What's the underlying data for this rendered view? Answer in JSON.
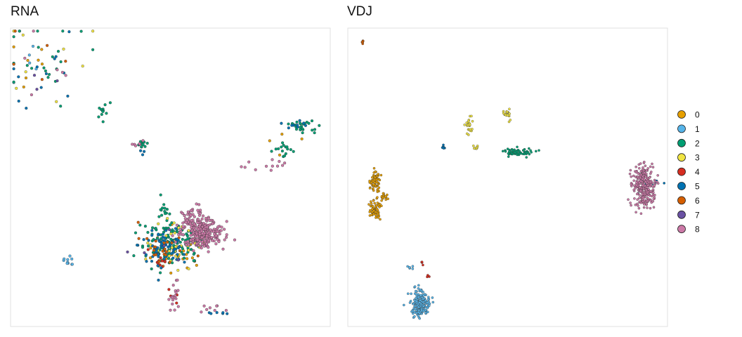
{
  "chart_data": [
    {
      "type": "scatter",
      "title": "RNA",
      "clusters": [
        {
          "name": "0",
          "groups": [
            {
              "cx": 0.07,
              "cy": 0.1,
              "n": 10,
              "sx": 0.07,
              "sy": 0.07
            },
            {
              "cx": 0.52,
              "cy": 0.75,
              "n": 25,
              "sx": 0.05,
              "sy": 0.035
            },
            {
              "cx": 0.89,
              "cy": 0.38,
              "n": 4,
              "sx": 0.04,
              "sy": 0.03
            }
          ]
        },
        {
          "name": "1",
          "groups": [
            {
              "cx": 0.18,
              "cy": 0.78,
              "n": 10,
              "sx": 0.008,
              "sy": 0.008
            },
            {
              "cx": 0.1,
              "cy": 0.12,
              "n": 5,
              "sx": 0.05,
              "sy": 0.05
            }
          ]
        },
        {
          "name": "2",
          "groups": [
            {
              "cx": 0.5,
              "cy": 0.72,
              "n": 120,
              "sx": 0.05,
              "sy": 0.04
            },
            {
              "cx": 0.1,
              "cy": 0.1,
              "n": 22,
              "sx": 0.07,
              "sy": 0.07
            },
            {
              "cx": 0.29,
              "cy": 0.28,
              "n": 12,
              "sx": 0.008,
              "sy": 0.015
            },
            {
              "cx": 0.41,
              "cy": 0.39,
              "n": 10,
              "sx": 0.01,
              "sy": 0.01
            },
            {
              "cx": 0.91,
              "cy": 0.33,
              "n": 25,
              "sx": 0.02,
              "sy": 0.012
            },
            {
              "cx": 0.86,
              "cy": 0.41,
              "n": 15,
              "sx": 0.015,
              "sy": 0.012
            },
            {
              "cx": 0.48,
              "cy": 0.61,
              "n": 14,
              "sx": 0.01,
              "sy": 0.015
            }
          ]
        },
        {
          "name": "3",
          "groups": [
            {
              "cx": 0.51,
              "cy": 0.73,
              "n": 40,
              "sx": 0.05,
              "sy": 0.035
            },
            {
              "cx": 0.1,
              "cy": 0.11,
              "n": 8,
              "sx": 0.07,
              "sy": 0.07
            }
          ]
        },
        {
          "name": "4",
          "groups": [
            {
              "cx": 0.47,
              "cy": 0.77,
              "n": 12,
              "sx": 0.02,
              "sy": 0.015
            },
            {
              "cx": 0.51,
              "cy": 0.9,
              "n": 4,
              "sx": 0.01,
              "sy": 0.02
            }
          ]
        },
        {
          "name": "5",
          "groups": [
            {
              "cx": 0.48,
              "cy": 0.73,
              "n": 70,
              "sx": 0.04,
              "sy": 0.035
            },
            {
              "cx": 0.08,
              "cy": 0.12,
              "n": 12,
              "sx": 0.07,
              "sy": 0.07
            },
            {
              "cx": 0.9,
              "cy": 0.33,
              "n": 10,
              "sx": 0.02,
              "sy": 0.012
            },
            {
              "cx": 0.64,
              "cy": 0.95,
              "n": 6,
              "sx": 0.025,
              "sy": 0.005
            },
            {
              "cx": 0.41,
              "cy": 0.4,
              "n": 4,
              "sx": 0.01,
              "sy": 0.01
            }
          ]
        },
        {
          "name": "6",
          "groups": [
            {
              "cx": 0.49,
              "cy": 0.74,
              "n": 22,
              "sx": 0.04,
              "sy": 0.035
            },
            {
              "cx": 0.09,
              "cy": 0.1,
              "n": 5,
              "sx": 0.07,
              "sy": 0.07
            }
          ]
        },
        {
          "name": "7",
          "groups": [
            {
              "cx": 0.48,
              "cy": 0.72,
              "n": 5,
              "sx": 0.04,
              "sy": 0.03
            },
            {
              "cx": 0.1,
              "cy": 0.2,
              "n": 3,
              "sx": 0.03,
              "sy": 0.03
            }
          ]
        },
        {
          "name": "8",
          "groups": [
            {
              "cx": 0.6,
              "cy": 0.69,
              "n": 260,
              "sx": 0.032,
              "sy": 0.025
            },
            {
              "cx": 0.56,
              "cy": 0.63,
              "n": 40,
              "sx": 0.025,
              "sy": 0.02
            },
            {
              "cx": 0.51,
              "cy": 0.9,
              "n": 18,
              "sx": 0.008,
              "sy": 0.03
            },
            {
              "cx": 0.63,
              "cy": 0.94,
              "n": 8,
              "sx": 0.02,
              "sy": 0.006
            },
            {
              "cx": 0.08,
              "cy": 0.1,
              "n": 6,
              "sx": 0.07,
              "sy": 0.07
            },
            {
              "cx": 0.4,
              "cy": 0.39,
              "n": 6,
              "sx": 0.01,
              "sy": 0.01
            },
            {
              "cx": 0.79,
              "cy": 0.46,
              "n": 12,
              "sx": 0.035,
              "sy": 0.012
            }
          ]
        }
      ]
    },
    {
      "type": "scatter",
      "title": "VDJ",
      "clusters": [
        {
          "name": "0",
          "groups": [
            {
              "cx": 0.086,
              "cy": 0.51,
              "n": 80,
              "sx": 0.008,
              "sy": 0.018
            },
            {
              "cx": 0.086,
              "cy": 0.61,
              "n": 60,
              "sx": 0.009,
              "sy": 0.015
            },
            {
              "cx": 0.11,
              "cy": 0.565,
              "n": 20,
              "sx": 0.006,
              "sy": 0.006
            }
          ]
        },
        {
          "name": "1",
          "groups": [
            {
              "cx": 0.228,
              "cy": 0.925,
              "n": 200,
              "sx": 0.014,
              "sy": 0.02
            },
            {
              "cx": 0.195,
              "cy": 0.805,
              "n": 6,
              "sx": 0.004,
              "sy": 0.005
            }
          ]
        },
        {
          "name": "2",
          "groups": [
            {
              "cx": 0.53,
              "cy": 0.415,
              "n": 60,
              "sx": 0.025,
              "sy": 0.007
            }
          ]
        },
        {
          "name": "3",
          "groups": [
            {
              "cx": 0.38,
              "cy": 0.325,
              "n": 25,
              "sx": 0.006,
              "sy": 0.012
            },
            {
              "cx": 0.5,
              "cy": 0.285,
              "n": 20,
              "sx": 0.005,
              "sy": 0.01
            },
            {
              "cx": 0.4,
              "cy": 0.4,
              "n": 10,
              "sx": 0.006,
              "sy": 0.004
            }
          ]
        },
        {
          "name": "4",
          "groups": [
            {
              "cx": 0.23,
              "cy": 0.785,
              "n": 4,
              "sx": 0.003,
              "sy": 0.005
            },
            {
              "cx": 0.25,
              "cy": 0.83,
              "n": 4,
              "sx": 0.003,
              "sy": 0.003
            }
          ]
        },
        {
          "name": "5",
          "groups": [
            {
              "cx": 0.3,
              "cy": 0.4,
              "n": 8,
              "sx": 0.003,
              "sy": 0.004
            },
            {
              "cx": 0.93,
              "cy": 0.53,
              "n": 10,
              "sx": 0.02,
              "sy": 0.025
            }
          ]
        },
        {
          "name": "6",
          "groups": [
            {
              "cx": 0.046,
              "cy": 0.045,
              "n": 6,
              "sx": 0.002,
              "sy": 0.003
            }
          ]
        },
        {
          "name": "7",
          "groups": []
        },
        {
          "name": "8",
          "groups": [
            {
              "cx": 0.925,
              "cy": 0.53,
              "n": 300,
              "sx": 0.016,
              "sy": 0.035
            }
          ]
        }
      ]
    }
  ],
  "legend": {
    "placement": "right",
    "items": [
      {
        "label": "0",
        "color": "#E69F00"
      },
      {
        "label": "1",
        "color": "#56B4E9"
      },
      {
        "label": "2",
        "color": "#009E73"
      },
      {
        "label": "3",
        "color": "#F0E442"
      },
      {
        "label": "4",
        "color": "#D62D20"
      },
      {
        "label": "5",
        "color": "#0072B2"
      },
      {
        "label": "6",
        "color": "#D55E00"
      },
      {
        "label": "7",
        "color": "#6A51A3"
      },
      {
        "label": "8",
        "color": "#CC79A7"
      }
    ]
  }
}
